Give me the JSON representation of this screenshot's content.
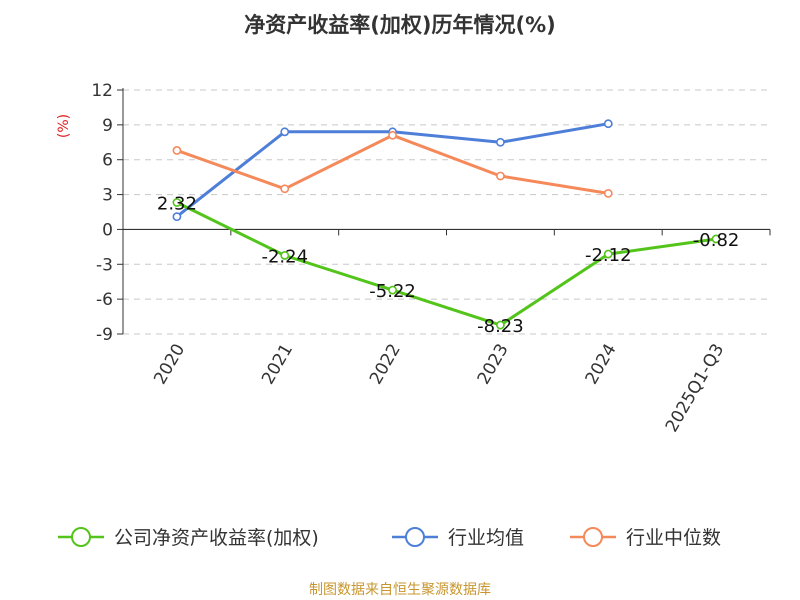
{
  "title": "净资产收益率(加权)历年情况(%)",
  "source": "制图数据来自恒生聚源数据库",
  "chart_data": {
    "type": "line",
    "title": "净资产收益率(加权)历年情况(%)",
    "ylabel": "(%)",
    "xlabel": "",
    "ylim": [
      -9,
      12
    ],
    "yticks": [
      12,
      9,
      6,
      3,
      0,
      -3,
      -6,
      -9
    ],
    "grid": true,
    "legend_position": "bottom",
    "categories": [
      "2020",
      "2021",
      "2022",
      "2023",
      "2024",
      "2025Q1-Q3"
    ],
    "series": [
      {
        "name": "公司净资产收益率(加权)",
        "color": "#52c41a",
        "values": [
          2.32,
          -2.24,
          -5.22,
          -8.23,
          -2.12,
          -0.82
        ],
        "labels": [
          "2.32",
          "-2.24",
          "-5.22",
          "-8.23",
          "-2.12",
          "-0.82"
        ]
      },
      {
        "name": "行业均值",
        "color": "#4e7fd8",
        "values": [
          1.1,
          8.4,
          8.4,
          7.5,
          9.1,
          null
        ]
      },
      {
        "name": "行业中位数",
        "color": "#f5895a",
        "values": [
          6.8,
          3.5,
          8.1,
          4.6,
          3.1,
          null
        ]
      }
    ]
  }
}
